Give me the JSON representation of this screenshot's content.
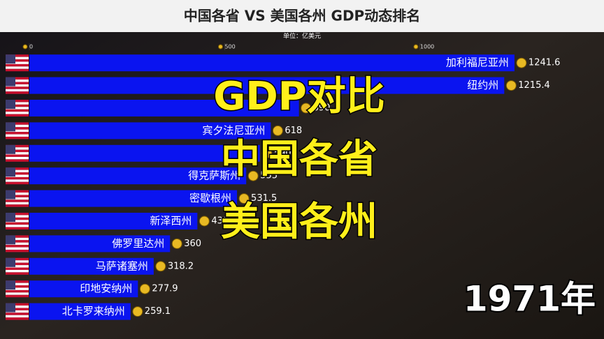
{
  "chart_data": {
    "type": "bar",
    "orientation": "horizontal",
    "title": "中国各省 VS 美国各州 GDP动态排名",
    "subtitle": "单位：亿美元",
    "categories": [
      "加利福尼亚州",
      "纽约州",
      null,
      "宾夕法尼亚州",
      null,
      "得克萨斯州",
      "密歇根州",
      "新泽西州",
      "佛罗里达州",
      "马萨诸塞州",
      "印地安纳州",
      "北卡罗来纳州"
    ],
    "values": [
      1241.6,
      1215.4,
      690,
      618,
      590,
      555,
      531.5,
      430,
      360,
      318.2,
      277.9,
      259.1
    ],
    "color": "#0a14f0",
    "xlim": [
      0,
      1460
    ],
    "xticks": [
      0,
      500,
      1000
    ],
    "annotations": [
      "GDP对比",
      "中国各省",
      "美国各州",
      "1971年"
    ]
  }
}
